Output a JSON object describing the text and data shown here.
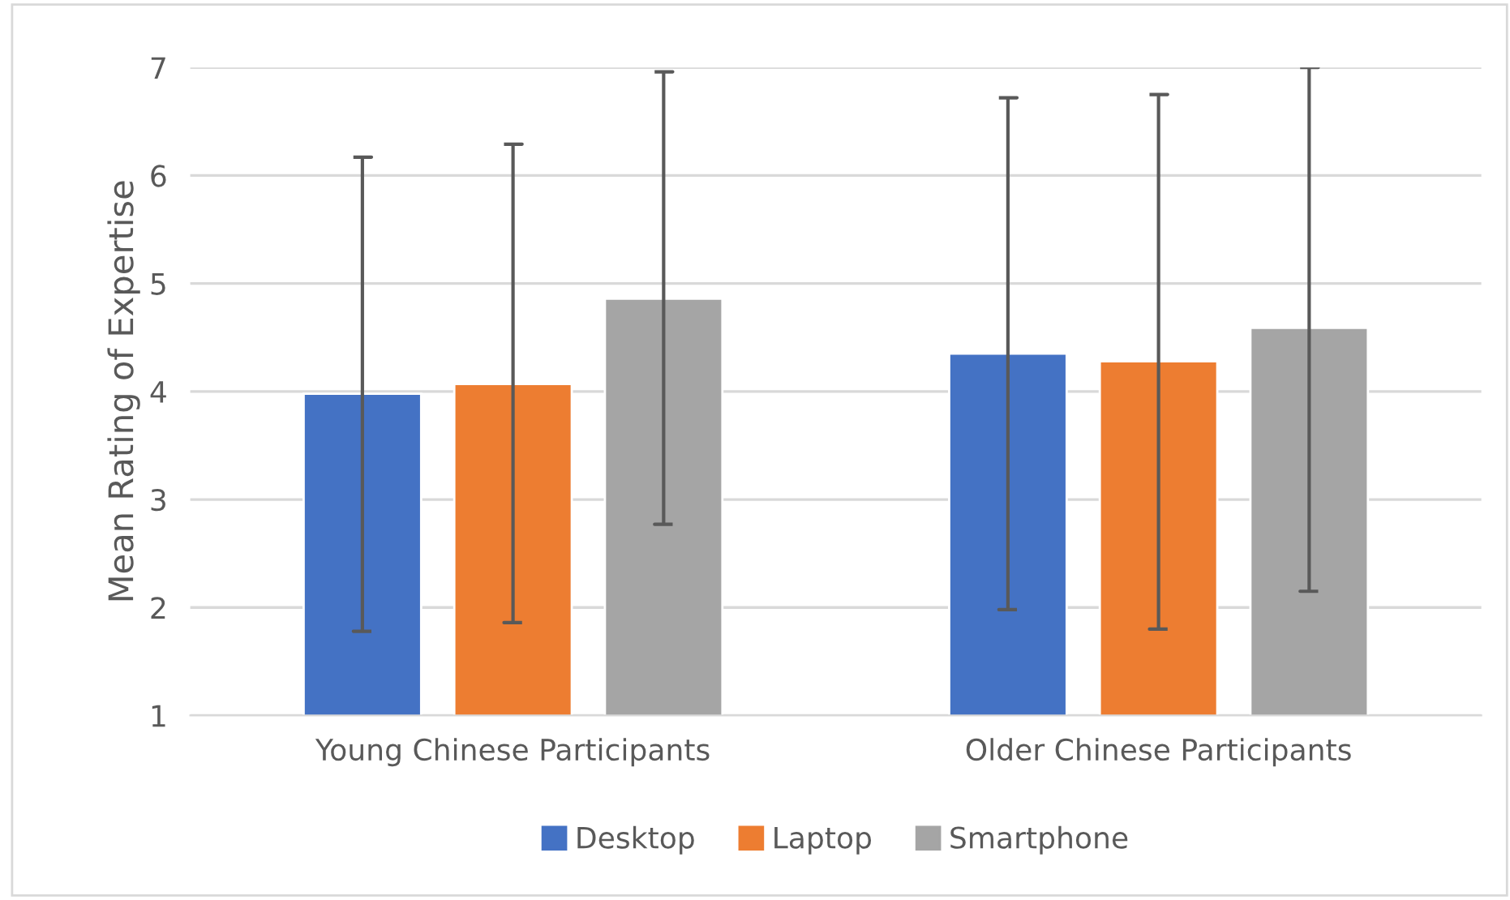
{
  "chart_data": {
    "type": "bar",
    "ylabel": "Mean Rating of Expertise",
    "categories": [
      "Young Chinese Participants",
      "Older Chinese Participants"
    ],
    "series": [
      {
        "name": "Desktop",
        "color": "#4472c4",
        "values": [
          3.98,
          4.35
        ],
        "errors": [
          [
            1.78,
            6.17
          ],
          [
            1.98,
            6.72
          ]
        ]
      },
      {
        "name": "Laptop",
        "color": "#ed7d31",
        "values": [
          4.07,
          4.28
        ],
        "errors": [
          [
            1.86,
            6.29
          ],
          [
            1.8,
            6.75
          ]
        ]
      },
      {
        "name": "Smartphone",
        "color": "#a5a5a5",
        "values": [
          4.86,
          4.59
        ],
        "errors": [
          [
            2.77,
            6.96
          ],
          [
            2.15,
            7
          ]
        ]
      }
    ],
    "ylim": [
      1,
      7
    ],
    "yticks": [
      1,
      2,
      3,
      4,
      5,
      6,
      7
    ],
    "grid": "y",
    "legend": "bottom"
  }
}
